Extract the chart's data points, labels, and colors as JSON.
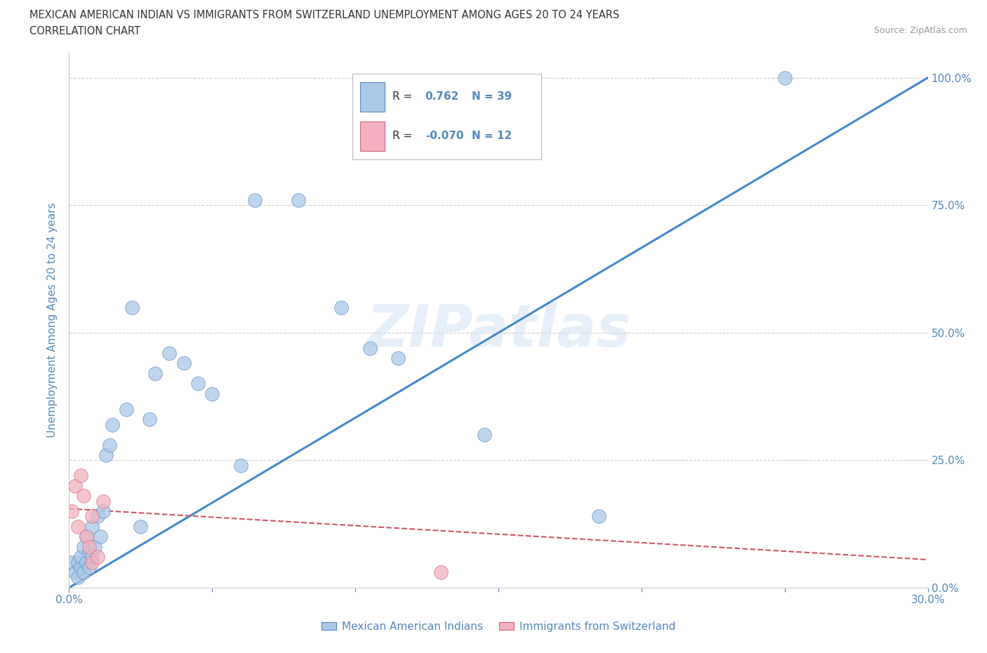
{
  "title_line1": "MEXICAN AMERICAN INDIAN VS IMMIGRANTS FROM SWITZERLAND UNEMPLOYMENT AMONG AGES 20 TO 24 YEARS",
  "title_line2": "CORRELATION CHART",
  "source_text": "Source: ZipAtlas.com",
  "ylabel": "Unemployment Among Ages 20 to 24 years",
  "watermark": "ZIPatlas",
  "blue_r": 0.762,
  "blue_n": 39,
  "pink_r": -0.07,
  "pink_n": 12,
  "blue_scatter_x": [
    0.001,
    0.002,
    0.003,
    0.003,
    0.004,
    0.004,
    0.005,
    0.005,
    0.006,
    0.006,
    0.007,
    0.007,
    0.008,
    0.008,
    0.009,
    0.01,
    0.011,
    0.012,
    0.013,
    0.014,
    0.015,
    0.02,
    0.022,
    0.025,
    0.028,
    0.03,
    0.035,
    0.04,
    0.045,
    0.05,
    0.06,
    0.065,
    0.08,
    0.095,
    0.105,
    0.115,
    0.145,
    0.185,
    0.25
  ],
  "blue_scatter_y": [
    0.05,
    0.03,
    0.02,
    0.05,
    0.04,
    0.06,
    0.03,
    0.08,
    0.05,
    0.1,
    0.04,
    0.07,
    0.12,
    0.06,
    0.08,
    0.14,
    0.1,
    0.15,
    0.26,
    0.28,
    0.32,
    0.35,
    0.55,
    0.12,
    0.33,
    0.42,
    0.46,
    0.44,
    0.4,
    0.38,
    0.24,
    0.76,
    0.76,
    0.55,
    0.47,
    0.45,
    0.3,
    0.14,
    1.0
  ],
  "pink_scatter_x": [
    0.001,
    0.002,
    0.003,
    0.004,
    0.005,
    0.006,
    0.007,
    0.008,
    0.008,
    0.01,
    0.012,
    0.13
  ],
  "pink_scatter_y": [
    0.15,
    0.2,
    0.12,
    0.22,
    0.18,
    0.1,
    0.08,
    0.14,
    0.05,
    0.06,
    0.17,
    0.03
  ],
  "blue_line_x": [
    0.0,
    0.3
  ],
  "blue_line_y": [
    0.0,
    1.0
  ],
  "pink_line_x": [
    0.0,
    0.3
  ],
  "pink_line_y": [
    0.155,
    0.055
  ],
  "xlim": [
    0.0,
    0.3
  ],
  "ylim": [
    0.0,
    1.05
  ],
  "xtick_positions": [
    0.0,
    0.05,
    0.1,
    0.15,
    0.2,
    0.25,
    0.3
  ],
  "xtick_labels_show": [
    "0.0%",
    "",
    "",
    "",
    "",
    "",
    "30.0%"
  ],
  "ytick_positions": [
    0.0,
    0.25,
    0.5,
    0.75,
    1.0
  ],
  "ytick_labels": [
    "0.0%",
    "25.0%",
    "50.0%",
    "75.0%",
    "100.0%"
  ],
  "grid_color": "#cccccc",
  "blue_color": "#aac8e8",
  "blue_edge_color": "#5588bb",
  "blue_line_color": "#4488cc",
  "pink_color": "#f4b0c0",
  "pink_edge_color": "#cc6677",
  "pink_line_color": "#cc5566",
  "background_color": "#ffffff",
  "title_color": "#333333",
  "tick_color": "#5588bb",
  "legend_label_color": "#5588bb"
}
